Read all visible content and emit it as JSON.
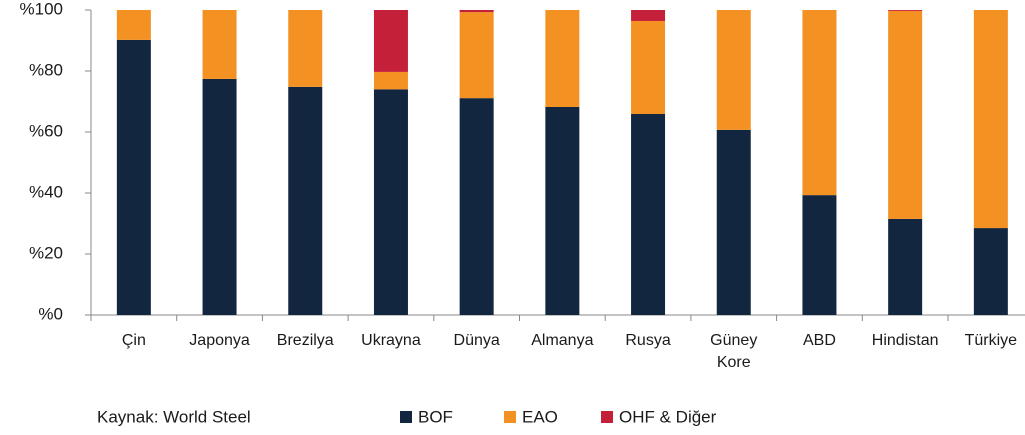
{
  "chart_data": {
    "type": "stacked_bar",
    "categories": [
      "Çin",
      "Japonya",
      "Brezilya",
      "Ukrayna",
      "Dünya",
      "Almanya",
      "Rusya",
      "Güney Kore",
      "ABD",
      "Hindistan",
      "Türkiye"
    ],
    "series": [
      {
        "name": "BOF",
        "color": "#13263f",
        "values": [
          90.2,
          77.4,
          74.8,
          74,
          71.1,
          68.2,
          65.9,
          60.7,
          39.3,
          31.5,
          28.5
        ]
      },
      {
        "name": "EAO",
        "color": "#f39123",
        "values": [
          9.8,
          22.6,
          25.2,
          5.7,
          28.2,
          31.8,
          30.5,
          39.3,
          60.7,
          68.2,
          71.5
        ]
      },
      {
        "name": "OHF & Diğer",
        "color": "#c5203a",
        "values": [
          0,
          0,
          0,
          20.3,
          0.7,
          0,
          3.6,
          0,
          0,
          0.3,
          0
        ]
      }
    ],
    "ylim": [
      0,
      100
    ],
    "yticks": [
      {
        "value": 0,
        "label": "%0"
      },
      {
        "value": 20,
        "label": "%20"
      },
      {
        "value": 40,
        "label": "%40"
      },
      {
        "value": 60,
        "label": "%60"
      },
      {
        "value": 80,
        "label": "%80"
      },
      {
        "value": 100,
        "label": "%100"
      }
    ],
    "source": "Kaynak: World Steel"
  }
}
